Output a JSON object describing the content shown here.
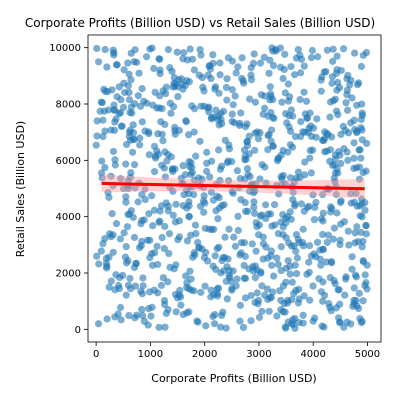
{
  "chart_data": {
    "type": "scatter",
    "title": "Corporate Profits (Billion USD) vs Retail Sales (Billion USD)",
    "xlabel": "Corporate Profits (Billion USD)",
    "ylabel": "Retail Sales (Billion USD)",
    "xlim": [
      -150,
      5250
    ],
    "ylim": [
      -450,
      10450
    ],
    "x_ticks": [
      0,
      1000,
      2000,
      3000,
      4000,
      5000
    ],
    "y_ticks": [
      0,
      2000,
      4000,
      6000,
      8000,
      10000
    ],
    "grid": false,
    "legend": "none",
    "point_count": 1000,
    "points_seed": 42,
    "point_ranges": {
      "x": [
        0,
        5000
      ],
      "y": [
        0,
        10000
      ]
    },
    "trend_line": {
      "x": [
        100,
        4950
      ],
      "y": [
        5180,
        4990
      ]
    },
    "colors": {
      "points": "#1f77b4",
      "trend": "#ff0000",
      "band": "#ff9999"
    }
  }
}
